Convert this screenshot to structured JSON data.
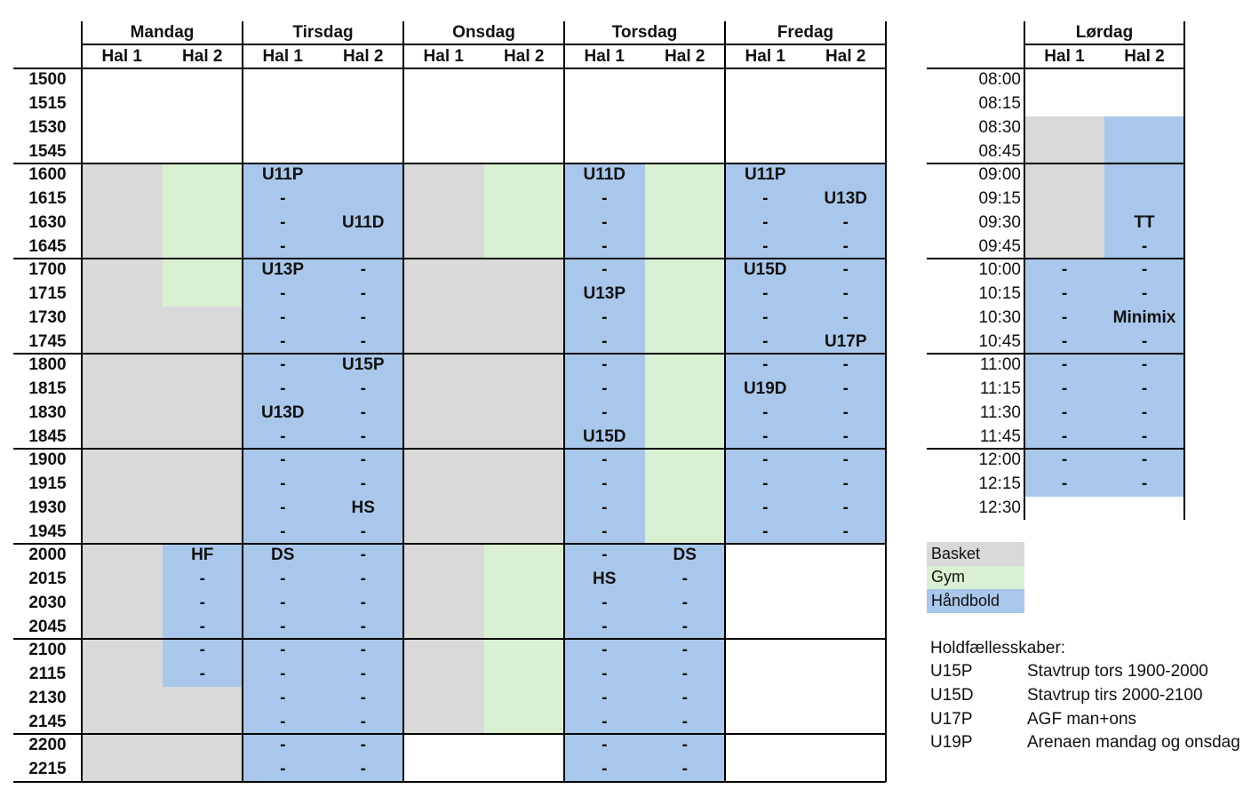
{
  "colors": {
    "basket": "#d9d9d9",
    "gym": "#d9f1d2",
    "haandbold": "#a9c7ea",
    "none": "#ffffff"
  },
  "weekdays": {
    "days": [
      "Mandag",
      "Tirsdag",
      "Onsdag",
      "Torsdag",
      "Fredag"
    ],
    "halls": [
      "Hal 1",
      "Hal 2"
    ],
    "times": [
      "1500",
      "1515",
      "1530",
      "1545",
      "1600",
      "1615",
      "1630",
      "1645",
      "1700",
      "1715",
      "1730",
      "1745",
      "1800",
      "1815",
      "1830",
      "1845",
      "1900",
      "1915",
      "1930",
      "1945",
      "2000",
      "2015",
      "2030",
      "2045",
      "2100",
      "2115",
      "2130",
      "2145",
      "2200",
      "2215"
    ],
    "schedule": [
      {
        "day": "Mandag",
        "hal": "Hal 1",
        "blocks": [
          {
            "from": "1600",
            "to": "2215",
            "kind": "basket",
            "labels": []
          }
        ]
      },
      {
        "day": "Mandag",
        "hal": "Hal 2",
        "blocks": [
          {
            "from": "1600",
            "to": "1715",
            "kind": "gym",
            "labels": []
          },
          {
            "from": "1730",
            "to": "1945",
            "kind": "basket",
            "labels": []
          },
          {
            "from": "2000",
            "to": "2115",
            "kind": "haandbold",
            "labels": [
              "HF",
              "-",
              "-",
              "-",
              "-",
              "-"
            ]
          },
          {
            "from": "2130",
            "to": "2215",
            "kind": "basket",
            "labels": []
          }
        ]
      },
      {
        "day": "Tirsdag",
        "hal": "Hal 1",
        "blocks": [
          {
            "from": "1600",
            "to": "2215",
            "kind": "haandbold",
            "labels": [
              "U11P",
              "-",
              "-",
              "-",
              "U13P",
              "-",
              "-",
              "-",
              "-",
              "-",
              "U13D",
              "-",
              "-",
              "-",
              "-",
              "-",
              "DS",
              "-",
              "-",
              "-",
              "-",
              "-",
              "-",
              "-",
              "-",
              "-"
            ]
          }
        ]
      },
      {
        "day": "Tirsdag",
        "hal": "Hal 2",
        "blocks": [
          {
            "from": "1600",
            "to": "2215",
            "kind": "haandbold",
            "labels": [
              "",
              "",
              "U11D",
              "",
              "-",
              "-",
              "-",
              "-",
              "U15P",
              "-",
              "-",
              "-",
              "-",
              "-",
              "HS",
              "-",
              "-",
              "-",
              "-",
              "-",
              "-",
              "-",
              "-",
              "-",
              "-",
              "-"
            ]
          }
        ]
      },
      {
        "day": "Onsdag",
        "hal": "Hal 1",
        "blocks": [
          {
            "from": "1600",
            "to": "2145",
            "kind": "basket",
            "labels": []
          }
        ]
      },
      {
        "day": "Onsdag",
        "hal": "Hal 2",
        "blocks": [
          {
            "from": "1600",
            "to": "1645",
            "kind": "gym",
            "labels": []
          },
          {
            "from": "1700",
            "to": "1945",
            "kind": "basket",
            "labels": []
          },
          {
            "from": "2000",
            "to": "2145",
            "kind": "gym",
            "labels": []
          }
        ]
      },
      {
        "day": "Torsdag",
        "hal": "Hal 1",
        "blocks": [
          {
            "from": "1600",
            "to": "2215",
            "kind": "haandbold",
            "labels": [
              "U11D",
              "-",
              "-",
              "-",
              "-",
              "U13P",
              "-",
              "-",
              "-",
              "-",
              "-",
              "U15D",
              "-",
              "-",
              "-",
              "-",
              "-",
              "HS",
              "-",
              "-",
              "-",
              "-",
              "-",
              "-",
              "-",
              "-"
            ]
          }
        ]
      },
      {
        "day": "Torsdag",
        "hal": "Hal 2",
        "blocks": [
          {
            "from": "1600",
            "to": "1945",
            "kind": "gym",
            "labels": []
          },
          {
            "from": "2000",
            "to": "2215",
            "kind": "haandbold",
            "labels": [
              "DS",
              "-",
              "-",
              "-",
              "-",
              "-",
              "-",
              "-",
              "-",
              "-"
            ]
          }
        ]
      },
      {
        "day": "Fredag",
        "hal": "Hal 1",
        "blocks": [
          {
            "from": "1600",
            "to": "1945",
            "kind": "haandbold",
            "labels": [
              "U11P",
              "-",
              "-",
              "-",
              "U15D",
              "-",
              "-",
              "-",
              "-",
              "U19D",
              "-",
              "-",
              "-",
              "-",
              "-",
              "-"
            ]
          }
        ]
      },
      {
        "day": "Fredag",
        "hal": "Hal 2",
        "blocks": [
          {
            "from": "1600",
            "to": "1945",
            "kind": "haandbold",
            "labels": [
              "",
              "U13D",
              "-",
              "-",
              "-",
              "-",
              "-",
              "U17P",
              "-",
              "-",
              "-",
              "-",
              "-",
              "-",
              "-",
              "-"
            ]
          }
        ]
      }
    ]
  },
  "saturday": {
    "day": "Lørdag",
    "halls": [
      "Hal 1",
      "Hal 2"
    ],
    "times": [
      "08:00",
      "08:15",
      "08:30",
      "08:45",
      "09:00",
      "09:15",
      "09:30",
      "09:45",
      "10:00",
      "10:15",
      "10:30",
      "10:45",
      "11:00",
      "11:15",
      "11:30",
      "11:45",
      "12:00",
      "12:15",
      "12:30"
    ],
    "schedule": [
      {
        "hal": "Hal 1",
        "blocks": [
          {
            "from": "08:30",
            "to": "09:45",
            "kind": "basket",
            "labels": []
          },
          {
            "from": "10:00",
            "to": "12:15",
            "kind": "haandbold",
            "labels": [
              "-",
              "-",
              "-",
              "-",
              "-",
              "-",
              "-",
              "-",
              "-",
              "-"
            ]
          }
        ]
      },
      {
        "hal": "Hal 2",
        "blocks": [
          {
            "from": "08:30",
            "to": "12:15",
            "kind": "haandbold",
            "labels": [
              "",
              "",
              "",
              "",
              "TT",
              "-",
              "-",
              "-",
              "Minimix",
              "-",
              "-",
              "-",
              "-",
              "-",
              "-",
              "-"
            ]
          }
        ]
      }
    ]
  },
  "legend": [
    {
      "kind": "basket",
      "label": "Basket"
    },
    {
      "kind": "gym",
      "label": "Gym"
    },
    {
      "kind": "haandbold",
      "label": "Håndbold"
    }
  ],
  "notes": {
    "title": "Holdfællesskaber:",
    "rows": [
      {
        "team": "U15P",
        "info": "Stavtrup tors 1900-2000"
      },
      {
        "team": "U15D",
        "info": "Stavtrup tirs 2000-2100"
      },
      {
        "team": "U17P",
        "info": "AGF man+ons"
      },
      {
        "team": "U19P",
        "info": "Arenaen mandag og onsdag"
      }
    ]
  }
}
